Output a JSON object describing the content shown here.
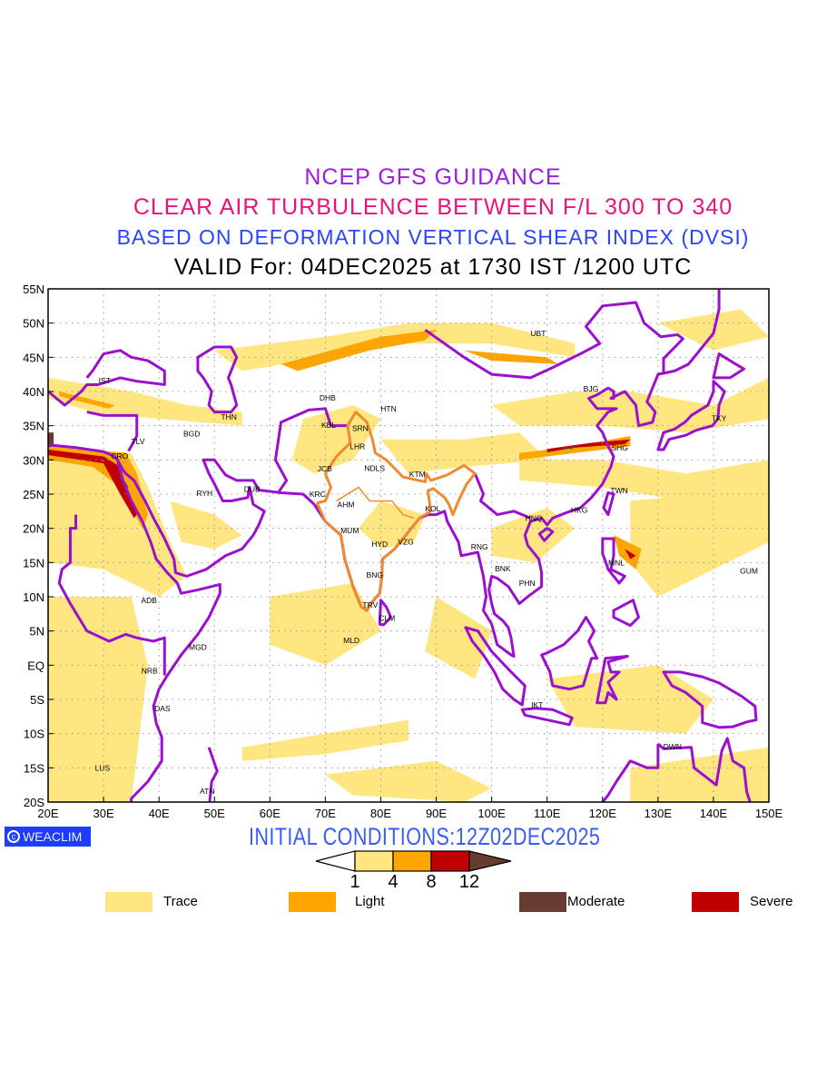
{
  "titles": {
    "line1": "NCEP GFS GUIDANCE",
    "line2": "CLEAR AIR TURBULENCE BETWEEN F/L 300 TO 340",
    "line3": "BASED ON DEFORMATION VERTICAL SHEAR INDEX (DVSI)",
    "line4": "VALID For: 04DEC2025 at 1730 IST /1200 UTC"
  },
  "title_colors": {
    "line1": "#9a20e0",
    "line2": "#e8147a",
    "line3": "#2b44ff",
    "line4": "#000000"
  },
  "map": {
    "lon_range": [
      20,
      150
    ],
    "lat_range": [
      -20,
      55
    ],
    "lat_labels": [
      "55N",
      "50N",
      "45N",
      "40N",
      "35N",
      "30N",
      "25N",
      "20N",
      "15N",
      "10N",
      "5N",
      "EQ",
      "5S",
      "10S",
      "15S",
      "20S"
    ],
    "lon_labels": [
      "20E",
      "30E",
      "40E",
      "50E",
      "60E",
      "70E",
      "80E",
      "90E",
      "100E",
      "110E",
      "120E",
      "130E",
      "140E",
      "150E"
    ],
    "cities": [
      {
        "code": "IST",
        "lon": 30.2,
        "lat": 41.6
      },
      {
        "code": "THN",
        "lon": 52.6,
        "lat": 36.3
      },
      {
        "code": "BGD",
        "lon": 45.9,
        "lat": 33.8
      },
      {
        "code": "TLV",
        "lon": 36.2,
        "lat": 32.7
      },
      {
        "code": "CRO",
        "lon": 32.9,
        "lat": 30.6
      },
      {
        "code": "RYH",
        "lon": 48.2,
        "lat": 25.1
      },
      {
        "code": "DUB",
        "lon": 56.8,
        "lat": 25.7
      },
      {
        "code": "DHB",
        "lon": 70.4,
        "lat": 39.1
      },
      {
        "code": "HTN",
        "lon": 81.4,
        "lat": 37.5
      },
      {
        "code": "KBL",
        "lon": 70.6,
        "lat": 35.1
      },
      {
        "code": "SRN",
        "lon": 76.3,
        "lat": 34.6
      },
      {
        "code": "LHR",
        "lon": 75.8,
        "lat": 32.0
      },
      {
        "code": "JCB",
        "lon": 69.9,
        "lat": 28.7
      },
      {
        "code": "NDLS",
        "lon": 78.9,
        "lat": 28.8
      },
      {
        "code": "KTM",
        "lon": 86.6,
        "lat": 27.9
      },
      {
        "code": "KRC",
        "lon": 68.6,
        "lat": 25.0
      },
      {
        "code": "AHM",
        "lon": 73.7,
        "lat": 23.5
      },
      {
        "code": "KOL",
        "lon": 89.4,
        "lat": 22.9
      },
      {
        "code": "MUM",
        "lon": 74.4,
        "lat": 19.7
      },
      {
        "code": "HYD",
        "lon": 79.8,
        "lat": 17.7
      },
      {
        "code": "VZG",
        "lon": 84.5,
        "lat": 18.0
      },
      {
        "code": "BNG",
        "lon": 78.9,
        "lat": 13.2
      },
      {
        "code": "TRV",
        "lon": 78.1,
        "lat": 8.8
      },
      {
        "code": "CLM",
        "lon": 81.1,
        "lat": 6.9
      },
      {
        "code": "MLD",
        "lon": 74.7,
        "lat": 3.6
      },
      {
        "code": "UBT",
        "lon": 108.4,
        "lat": 48.5
      },
      {
        "code": "BJG",
        "lon": 117.9,
        "lat": 40.4
      },
      {
        "code": "TKY",
        "lon": 141.0,
        "lat": 36.1
      },
      {
        "code": "SHG",
        "lon": 123.1,
        "lat": 31.8
      },
      {
        "code": "TWN",
        "lon": 123.0,
        "lat": 25.5
      },
      {
        "code": "HKG",
        "lon": 115.8,
        "lat": 22.7
      },
      {
        "code": "HNQ",
        "lon": 107.6,
        "lat": 21.5
      },
      {
        "code": "RNG",
        "lon": 97.8,
        "lat": 17.3
      },
      {
        "code": "BNK",
        "lon": 102.0,
        "lat": 14.1
      },
      {
        "code": "PHN",
        "lon": 106.4,
        "lat": 12.0
      },
      {
        "code": "MNL",
        "lon": 122.5,
        "lat": 15.0
      },
      {
        "code": "GUM",
        "lon": 146.4,
        "lat": 13.8
      },
      {
        "code": "IKT",
        "lon": 108.2,
        "lat": -5.8
      },
      {
        "code": "DWN",
        "lon": 132.6,
        "lat": -11.9
      },
      {
        "code": "ADB",
        "lon": 38.2,
        "lat": 9.5
      },
      {
        "code": "MGD",
        "lon": 47.0,
        "lat": 2.6
      },
      {
        "code": "NRB",
        "lon": 38.3,
        "lat": -0.8
      },
      {
        "code": "DAS",
        "lon": 40.6,
        "lat": -6.3
      },
      {
        "code": "LUS",
        "lon": 29.8,
        "lat": -15.0
      },
      {
        "code": "ATN",
        "lon": 48.7,
        "lat": -18.4
      }
    ]
  },
  "logo": {
    "text": "WEACLIM"
  },
  "initial_conditions": "INITIAL CONDITIONS:12Z02DEC2025",
  "colorbar": {
    "levels": [
      "1",
      "4",
      "8",
      "12"
    ],
    "colors": [
      "#ffffff",
      "#ffe680",
      "#ffa500",
      "#c00000",
      "#663d30"
    ]
  },
  "legend": [
    {
      "label": "Trace",
      "color": "#ffe680"
    },
    {
      "label": "Light",
      "color": "#ffa500"
    },
    {
      "label": "Moderate",
      "color": "#663d30"
    },
    {
      "label": "Severe",
      "color": "#c00000"
    }
  ]
}
